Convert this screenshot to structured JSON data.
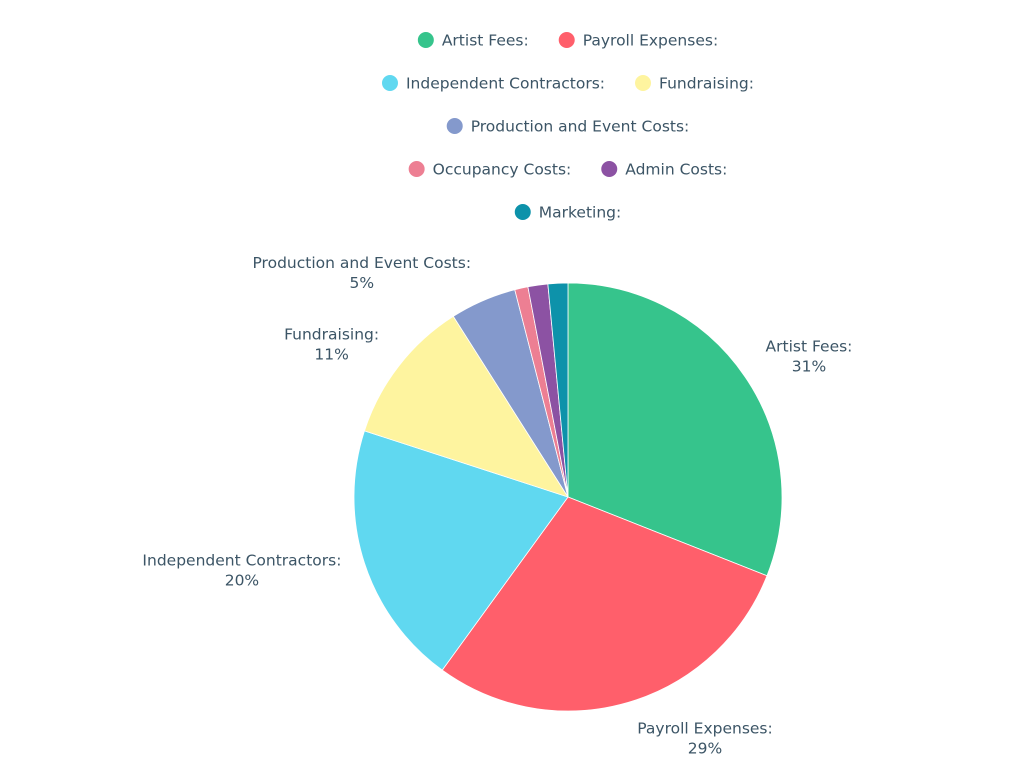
{
  "chart_data": {
    "type": "pie",
    "title": "",
    "slices": [
      {
        "label": "Artist Fees:",
        "value": 31,
        "value_label": "31%",
        "color": "#36c48c"
      },
      {
        "label": "Payroll Expenses:",
        "value": 29,
        "value_label": "29%",
        "color": "#ff5f6b"
      },
      {
        "label": "Independent Contractors:",
        "value": 20,
        "value_label": "20%",
        "color": "#60d8f0"
      },
      {
        "label": "Fundraising:",
        "value": 11,
        "value_label": "11%",
        "color": "#fef49f"
      },
      {
        "label": "Production and Event Costs:",
        "value": 5,
        "value_label": "5%",
        "color": "#8499cc"
      },
      {
        "label": "Occupancy Costs:",
        "value": 1,
        "value_label": "",
        "color": "#ed7f93"
      },
      {
        "label": "Admin Costs:",
        "value": 1.5,
        "value_label": "",
        "color": "#8c52a3"
      },
      {
        "label": "Marketing:",
        "value": 1.5,
        "value_label": "",
        "color": "#0d92aa"
      }
    ],
    "legend_position": "top",
    "start_angle_deg": 0,
    "direction": "clockwise"
  }
}
